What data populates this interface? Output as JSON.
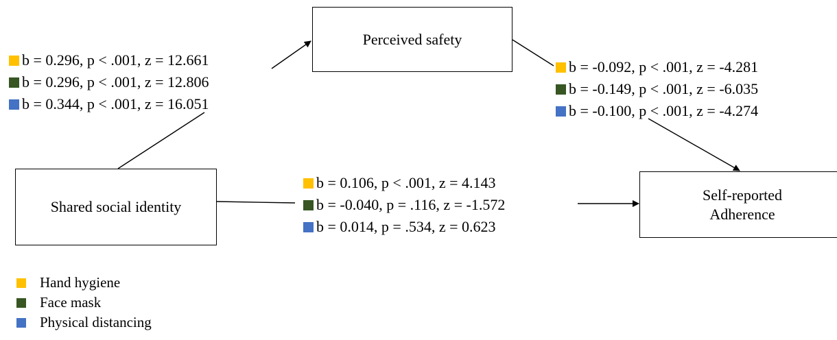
{
  "colors": {
    "hand_hygiene": "#ffc000",
    "face_mask": "#375623",
    "physical_distancing": "#4472c4"
  },
  "nodes": {
    "perceived_safety": "Perceived safety",
    "shared_social_identity": "Shared social identity",
    "self_reported_adherence_line1": "Self-reported",
    "self_reported_adherence_line2": "Adherence"
  },
  "paths": {
    "identity_to_safety": [
      "b = 0.296, p < .001, z = 12.661",
      "b = 0.296, p < .001, z = 12.806",
      "b = 0.344, p < .001, z = 16.051"
    ],
    "safety_to_adherence": [
      "b = -0.092, p < .001, z = -4.281",
      "b = -0.149, p < .001, z = -6.035",
      "b = -0.100, p < .001, z = -4.274"
    ],
    "identity_to_adherence": [
      "b = 0.106, p < .001, z = 4.143",
      "b = -0.040, p = .116, z = -1.572",
      "b = 0.014, p = .534, z = 0.623"
    ]
  },
  "legend": [
    "Hand hygiene",
    "Face mask",
    "Physical distancing"
  ]
}
